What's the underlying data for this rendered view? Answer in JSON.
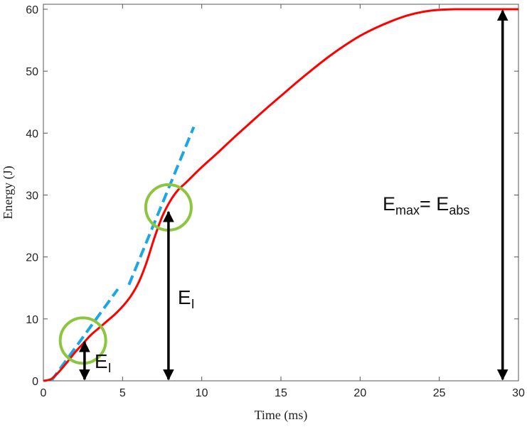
{
  "chart_data": {
    "type": "line",
    "xlabel": "Time (ms)",
    "ylabel": "Energy (J)",
    "xlim": [
      0,
      30
    ],
    "ylim": [
      0,
      60
    ],
    "xticks": [
      0,
      5,
      10,
      15,
      20,
      25,
      30
    ],
    "yticks": [
      0,
      10,
      20,
      30,
      40,
      50,
      60
    ],
    "grid": false,
    "series": [
      {
        "style": "solid",
        "color": "#ff0000",
        "x": [
          0,
          0.5,
          1,
          1.5,
          2,
          2.5,
          3,
          3.5,
          4,
          4.5,
          5,
          5.5,
          6,
          6.5,
          7,
          7.5,
          8,
          8.5,
          9,
          10,
          11,
          12,
          13,
          14,
          15,
          16,
          17,
          18,
          19,
          20,
          21,
          22,
          23,
          24,
          25,
          26,
          27,
          28,
          29,
          30
        ],
        "y": [
          0,
          0.3,
          1.5,
          3.0,
          4.6,
          6.0,
          7.4,
          8.5,
          9.6,
          10.7,
          12.0,
          13.6,
          15.8,
          19.0,
          23.0,
          26.5,
          29.0,
          30.8,
          32.0,
          34.5,
          36.8,
          39.2,
          41.5,
          43.8,
          46.0,
          48.2,
          50.3,
          52.3,
          54.1,
          55.7,
          57.0,
          58.1,
          59.0,
          59.6,
          59.9,
          60.0,
          60.0,
          60.0,
          60.0,
          60.0
        ]
      },
      {
        "style": "dashed",
        "color": "#1ba7e6",
        "x": [
          0.5,
          4.7
        ],
        "y": [
          0,
          14.8
        ]
      },
      {
        "style": "dashed",
        "color": "#1ba7e6",
        "x": [
          5.4,
          9.5
        ],
        "y": [
          15.5,
          41
        ]
      }
    ],
    "markers": [
      {
        "shape": "circle",
        "color": "#8cc63f",
        "x": 2.5,
        "y": 6.5
      },
      {
        "shape": "circle",
        "color": "#8cc63f",
        "x": 7.9,
        "y": 28
      }
    ],
    "arrows": [
      {
        "x": 2.6,
        "y_from": 0,
        "y_to": 6.5,
        "label": "E",
        "label_sub": "I"
      },
      {
        "x": 7.9,
        "y_from": 0,
        "y_to": 27.5,
        "label": "E",
        "label_sub": "I"
      },
      {
        "x": 29.0,
        "y_from": 0,
        "y_to": 60,
        "label": "E",
        "label_sub": "max",
        "label_mid": "= E",
        "label_sub2": "abs"
      }
    ]
  }
}
